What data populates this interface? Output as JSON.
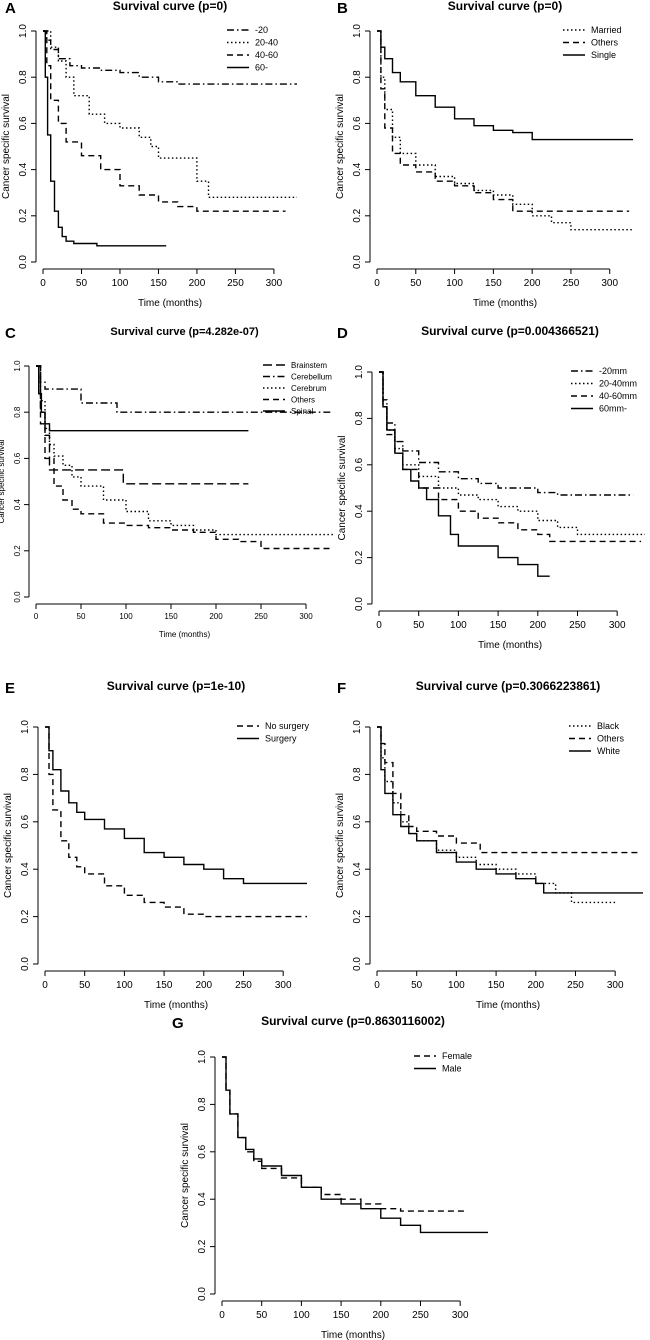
{
  "chart_data": [
    {
      "panel": "A",
      "type": "line",
      "title": "Survival curve (p=0)",
      "xlabel": "Time (months)",
      "ylabel": "Cancer specific survival",
      "xlim": [
        0,
        330
      ],
      "ylim": [
        0,
        1
      ],
      "xticks": [
        "0",
        "50",
        "100",
        "150",
        "200",
        "250",
        "300"
      ],
      "yticks": [
        "0.0",
        "0.2",
        "0.4",
        "0.6",
        "0.8",
        "1.0"
      ],
      "legend_position": "top-right",
      "series": [
        {
          "name": "-20",
          "dash": "dashdot",
          "x": [
            0,
            5,
            10,
            20,
            35,
            50,
            75,
            100,
            125,
            150,
            175,
            330
          ],
          "y": [
            1.0,
            0.96,
            0.92,
            0.88,
            0.85,
            0.84,
            0.83,
            0.82,
            0.8,
            0.78,
            0.77,
            0.77
          ]
        },
        {
          "name": "20-40",
          "dash": "dotted",
          "x": [
            0,
            10,
            20,
            30,
            40,
            60,
            80,
            100,
            125,
            140,
            150,
            175,
            200,
            215,
            250,
            330
          ],
          "y": [
            1.0,
            0.93,
            0.87,
            0.8,
            0.72,
            0.64,
            0.6,
            0.58,
            0.54,
            0.5,
            0.45,
            0.45,
            0.35,
            0.28,
            0.28,
            0.28
          ]
        },
        {
          "name": "40-60",
          "dash": "dashed",
          "x": [
            0,
            5,
            10,
            20,
            30,
            50,
            75,
            100,
            125,
            150,
            175,
            200,
            250,
            315
          ],
          "y": [
            1.0,
            0.85,
            0.7,
            0.6,
            0.52,
            0.46,
            0.4,
            0.33,
            0.29,
            0.26,
            0.24,
            0.22,
            0.22,
            0.22
          ]
        },
        {
          "name": "60-",
          "dash": "solid",
          "x": [
            0,
            3,
            6,
            10,
            15,
            20,
            25,
            30,
            40,
            50,
            70,
            100,
            160
          ],
          "y": [
            1.0,
            0.8,
            0.55,
            0.35,
            0.22,
            0.15,
            0.11,
            0.09,
            0.08,
            0.08,
            0.07,
            0.07,
            0.07
          ]
        }
      ]
    },
    {
      "panel": "B",
      "type": "line",
      "title": "Survival curve (p=0)",
      "xlabel": "Time (months)",
      "ylabel": "Cancer specific survival",
      "xlim": [
        0,
        330
      ],
      "ylim": [
        0,
        1
      ],
      "xticks": [
        "0",
        "50",
        "100",
        "150",
        "200",
        "250",
        "300"
      ],
      "yticks": [
        "0.0",
        "0.2",
        "0.4",
        "0.6",
        "0.8",
        "1.0"
      ],
      "legend_position": "top-right",
      "series": [
        {
          "name": "Married",
          "dash": "dotted",
          "x": [
            0,
            5,
            10,
            20,
            30,
            50,
            75,
            100,
            125,
            150,
            175,
            200,
            225,
            250,
            330
          ],
          "y": [
            1.0,
            0.8,
            0.66,
            0.54,
            0.47,
            0.42,
            0.37,
            0.34,
            0.31,
            0.29,
            0.25,
            0.2,
            0.17,
            0.14,
            0.14
          ]
        },
        {
          "name": "Others",
          "dash": "dashed",
          "x": [
            0,
            5,
            10,
            20,
            30,
            50,
            75,
            100,
            125,
            150,
            175,
            200,
            250,
            325
          ],
          "y": [
            1.0,
            0.75,
            0.58,
            0.47,
            0.42,
            0.39,
            0.35,
            0.33,
            0.3,
            0.27,
            0.22,
            0.22,
            0.22,
            0.22
          ]
        },
        {
          "name": "Single",
          "dash": "solid",
          "x": [
            0,
            5,
            10,
            20,
            30,
            50,
            75,
            100,
            125,
            150,
            175,
            200,
            250,
            330
          ],
          "y": [
            1.0,
            0.93,
            0.88,
            0.82,
            0.78,
            0.72,
            0.67,
            0.62,
            0.59,
            0.57,
            0.56,
            0.53,
            0.53,
            0.53
          ]
        }
      ]
    },
    {
      "panel": "C",
      "type": "line",
      "title": "Survival curve (p=4.282e-07)",
      "xlabel": "Time (months)",
      "ylabel": "Cancer specific survival",
      "xlim": [
        0,
        330
      ],
      "ylim": [
        0,
        1
      ],
      "xticks": [
        "0",
        "50",
        "100",
        "150",
        "200",
        "250",
        "300"
      ],
      "yticks": [
        "0.0",
        "0.2",
        "0.4",
        "0.6",
        "0.8",
        "1.0"
      ],
      "legend_position": "top-right",
      "series": [
        {
          "name": "Brainstem",
          "dash": "longdash",
          "x": [
            0,
            5,
            10,
            15,
            25,
            60,
            97,
            150,
            236
          ],
          "y": [
            1.0,
            0.8,
            0.7,
            0.55,
            0.55,
            0.55,
            0.49,
            0.49,
            0.49
          ]
        },
        {
          "name": "Cerebellum",
          "dash": "dashdot",
          "x": [
            0,
            5,
            10,
            20,
            35,
            50,
            60,
            75,
            90,
            100,
            330
          ],
          "y": [
            1.0,
            0.93,
            0.9,
            0.9,
            0.9,
            0.84,
            0.84,
            0.84,
            0.8,
            0.8,
            0.8
          ]
        },
        {
          "name": "Cerebrum",
          "dash": "dotted",
          "x": [
            0,
            5,
            10,
            15,
            20,
            30,
            40,
            50,
            75,
            100,
            125,
            150,
            175,
            200,
            225,
            330
          ],
          "y": [
            1.0,
            0.85,
            0.73,
            0.66,
            0.61,
            0.57,
            0.52,
            0.48,
            0.42,
            0.37,
            0.33,
            0.31,
            0.29,
            0.27,
            0.27,
            0.27
          ]
        },
        {
          "name": "Others",
          "dash": "dashed",
          "x": [
            0,
            5,
            10,
            20,
            30,
            40,
            50,
            75,
            100,
            125,
            150,
            175,
            200,
            225,
            250,
            330
          ],
          "y": [
            1.0,
            0.75,
            0.6,
            0.48,
            0.42,
            0.38,
            0.36,
            0.32,
            0.31,
            0.3,
            0.29,
            0.28,
            0.25,
            0.24,
            0.21,
            0.21
          ]
        },
        {
          "name": "Spinal",
          "dash": "solid",
          "x": [
            0,
            3,
            6,
            10,
            15,
            236
          ],
          "y": [
            1.0,
            0.88,
            0.8,
            0.75,
            0.72,
            0.72
          ]
        }
      ]
    },
    {
      "panel": "D",
      "type": "line",
      "title": "Survival curve (p=0.004366521)",
      "xlabel": "Time (months)",
      "ylabel": "Cancer specific survival",
      "xlim": [
        0,
        330
      ],
      "ylim": [
        0,
        1
      ],
      "xticks": [
        "0",
        "50",
        "100",
        "150",
        "200",
        "250",
        "300"
      ],
      "yticks": [
        "0.0",
        "0.2",
        "0.4",
        "0.6",
        "0.8",
        "1.0"
      ],
      "legend_position": "top-right",
      "series": [
        {
          "name": "-20mm",
          "dash": "dashdot",
          "x": [
            0,
            5,
            10,
            20,
            30,
            50,
            75,
            100,
            125,
            150,
            175,
            200,
            225,
            320
          ],
          "y": [
            1.0,
            0.88,
            0.78,
            0.7,
            0.66,
            0.61,
            0.57,
            0.54,
            0.52,
            0.5,
            0.5,
            0.48,
            0.47,
            0.47
          ]
        },
        {
          "name": "20-40mm",
          "dash": "dotted",
          "x": [
            0,
            5,
            10,
            20,
            30,
            50,
            75,
            100,
            125,
            150,
            175,
            200,
            225,
            250,
            335
          ],
          "y": [
            1.0,
            0.85,
            0.75,
            0.67,
            0.6,
            0.55,
            0.5,
            0.47,
            0.45,
            0.42,
            0.4,
            0.36,
            0.33,
            0.3,
            0.3
          ]
        },
        {
          "name": "40-60mm",
          "dash": "dashed",
          "x": [
            0,
            5,
            10,
            20,
            30,
            50,
            75,
            100,
            125,
            150,
            175,
            200,
            215,
            330
          ],
          "y": [
            1.0,
            0.85,
            0.73,
            0.65,
            0.58,
            0.5,
            0.45,
            0.4,
            0.37,
            0.35,
            0.32,
            0.3,
            0.27,
            0.27
          ]
        },
        {
          "name": "60mm-",
          "dash": "solid",
          "x": [
            0,
            5,
            10,
            20,
            30,
            40,
            50,
            60,
            75,
            90,
            100,
            125,
            150,
            175,
            200,
            215
          ],
          "y": [
            1.0,
            0.85,
            0.75,
            0.65,
            0.58,
            0.53,
            0.5,
            0.45,
            0.38,
            0.3,
            0.25,
            0.25,
            0.2,
            0.17,
            0.12,
            0.12
          ]
        }
      ]
    },
    {
      "panel": "E",
      "type": "line",
      "title": "Survival curve (p=1e-10)",
      "xlabel": "Time (months)",
      "ylabel": "Cancer specific survival",
      "xlim": [
        0,
        330
      ],
      "ylim": [
        0,
        1
      ],
      "xticks": [
        "0",
        "50",
        "100",
        "150",
        "200",
        "250",
        "300"
      ],
      "yticks": [
        "0.0",
        "0.2",
        "0.4",
        "0.6",
        "0.8",
        "1.0"
      ],
      "legend_position": "top-right",
      "series": [
        {
          "name": "No surgery",
          "dash": "dashed",
          "x": [
            0,
            5,
            10,
            20,
            30,
            40,
            50,
            75,
            100,
            125,
            150,
            175,
            200,
            250,
            330
          ],
          "y": [
            1.0,
            0.8,
            0.65,
            0.52,
            0.45,
            0.41,
            0.38,
            0.33,
            0.29,
            0.26,
            0.24,
            0.21,
            0.2,
            0.2,
            0.2
          ]
        },
        {
          "name": "Surgery",
          "dash": "solid",
          "x": [
            0,
            5,
            10,
            20,
            30,
            40,
            50,
            75,
            100,
            125,
            150,
            175,
            200,
            225,
            250,
            330
          ],
          "y": [
            1.0,
            0.9,
            0.82,
            0.73,
            0.68,
            0.64,
            0.61,
            0.57,
            0.53,
            0.47,
            0.45,
            0.42,
            0.4,
            0.36,
            0.34,
            0.34
          ]
        }
      ]
    },
    {
      "panel": "F",
      "type": "line",
      "title": "Survival curve (p=0.3066223861)",
      "xlabel": "Time (months)",
      "ylabel": "Cancer specific survival",
      "xlim": [
        0,
        330
      ],
      "ylim": [
        0,
        1
      ],
      "xticks": [
        "0",
        "50",
        "100",
        "150",
        "200",
        "250",
        "300"
      ],
      "yticks": [
        "0.0",
        "0.2",
        "0.4",
        "0.6",
        "0.8",
        "1.0"
      ],
      "legend_position": "top-right",
      "series": [
        {
          "name": "Black",
          "dash": "dotted",
          "x": [
            0,
            5,
            10,
            20,
            30,
            40,
            50,
            75,
            100,
            125,
            150,
            175,
            200,
            225,
            245,
            300
          ],
          "y": [
            1.0,
            0.87,
            0.77,
            0.68,
            0.6,
            0.55,
            0.52,
            0.48,
            0.45,
            0.42,
            0.4,
            0.38,
            0.34,
            0.3,
            0.26,
            0.26
          ]
        },
        {
          "name": "Others",
          "dash": "dashed",
          "x": [
            0,
            5,
            10,
            20,
            30,
            40,
            50,
            75,
            100,
            130,
            150,
            330
          ],
          "y": [
            1.0,
            0.93,
            0.85,
            0.72,
            0.63,
            0.58,
            0.56,
            0.54,
            0.51,
            0.47,
            0.47,
            0.47
          ]
        },
        {
          "name": "White",
          "dash": "solid",
          "x": [
            0,
            5,
            10,
            20,
            30,
            40,
            50,
            75,
            100,
            125,
            150,
            175,
            200,
            210,
            250,
            335
          ],
          "y": [
            1.0,
            0.82,
            0.72,
            0.63,
            0.58,
            0.55,
            0.52,
            0.47,
            0.43,
            0.4,
            0.38,
            0.36,
            0.34,
            0.3,
            0.3,
            0.3
          ]
        }
      ]
    },
    {
      "panel": "G",
      "type": "line",
      "title": "Survival curve (p=0.8630116002)",
      "xlabel": "Time (months)",
      "ylabel": "Cancer specific survival",
      "xlim": [
        0,
        330
      ],
      "ylim": [
        0,
        1
      ],
      "xticks": [
        "0",
        "50",
        "100",
        "150",
        "200",
        "250",
        "300"
      ],
      "yticks": [
        "0.0",
        "0.2",
        "0.4",
        "0.6",
        "0.8",
        "1.0"
      ],
      "legend_position": "top-right",
      "series": [
        {
          "name": "Female",
          "dash": "dashed",
          "x": [
            0,
            5,
            10,
            20,
            30,
            40,
            50,
            75,
            100,
            125,
            150,
            175,
            200,
            225,
            250,
            305
          ],
          "y": [
            1.0,
            0.86,
            0.76,
            0.66,
            0.6,
            0.56,
            0.53,
            0.49,
            0.45,
            0.42,
            0.4,
            0.38,
            0.36,
            0.35,
            0.35,
            0.35
          ]
        },
        {
          "name": "Male",
          "dash": "solid",
          "x": [
            0,
            5,
            10,
            20,
            30,
            40,
            50,
            75,
            100,
            125,
            150,
            175,
            190,
            200,
            225,
            250,
            335
          ],
          "y": [
            1.0,
            0.86,
            0.76,
            0.66,
            0.61,
            0.57,
            0.54,
            0.5,
            0.45,
            0.4,
            0.38,
            0.36,
            0.36,
            0.32,
            0.29,
            0.26,
            0.26
          ]
        }
      ]
    }
  ]
}
